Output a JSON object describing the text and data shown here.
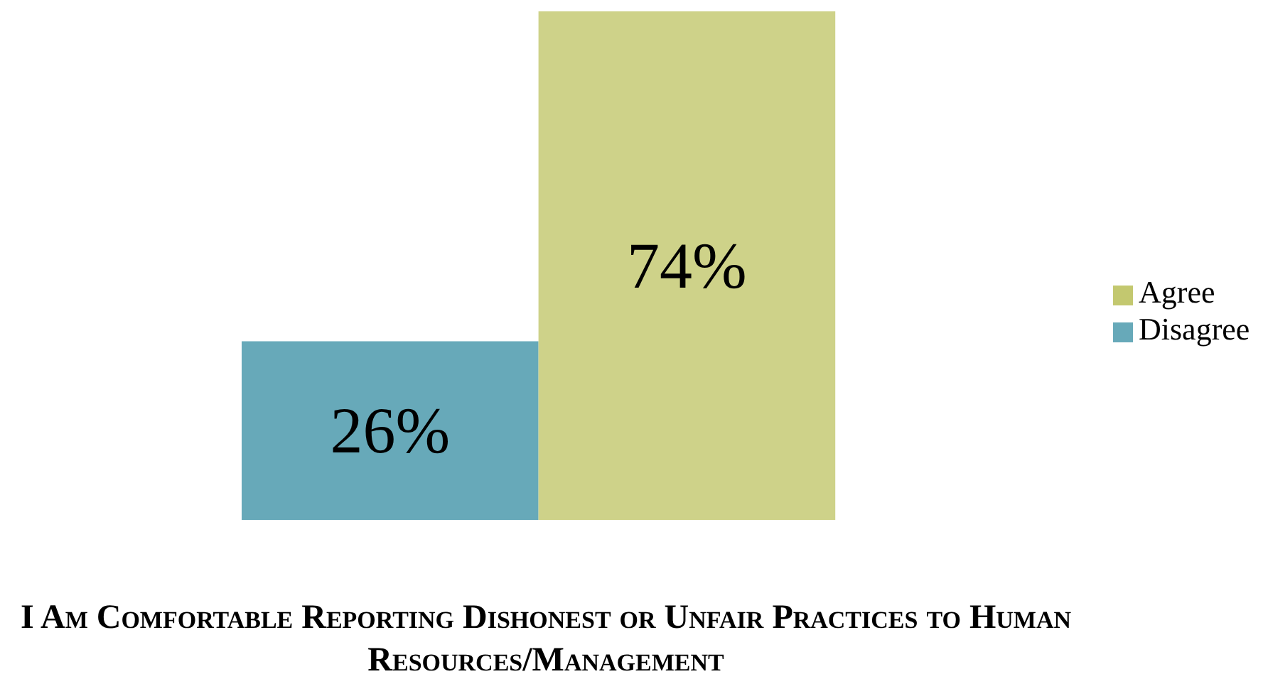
{
  "chart_data": {
    "type": "bar",
    "xlabel": "I Am Comfortable Reporting Dishonest or Unfair Practices to Human Resources/Management",
    "categories": [
      null
    ],
    "series": [
      {
        "name": "Disagree",
        "color": "#67a9b9",
        "values": [
          26
        ],
        "value_labels": [
          "26%"
        ]
      },
      {
        "name": "Agree",
        "color": "#c3c86f",
        "values": [
          74
        ],
        "value_labels": [
          "74%"
        ]
      }
    ],
    "legend": "right",
    "grid": false
  }
}
